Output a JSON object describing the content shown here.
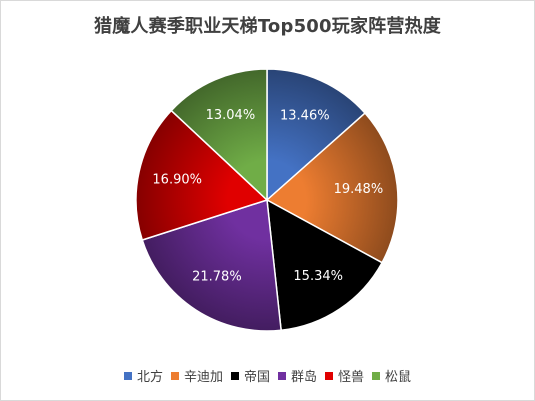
{
  "chart_data": {
    "type": "pie",
    "title": "猎魔人赛季职业天梯Top500玩家阵营热度",
    "categories": [
      "北方",
      "辛迪加",
      "帝国",
      "群岛",
      "怪兽",
      "松鼠"
    ],
    "values": [
      13.46,
      19.48,
      15.34,
      21.78,
      16.9,
      13.04
    ],
    "labels": [
      "13.46%",
      "19.48%",
      "15.34%",
      "21.78%",
      "16.90%",
      "13.04%"
    ],
    "colors": [
      "#4472c4",
      "#ed7d31",
      "#000000",
      "#7030a0",
      "#e00000",
      "#70ad47"
    ],
    "legend_position": "bottom",
    "start_angle": "12 o'clock",
    "direction": "clockwise"
  }
}
